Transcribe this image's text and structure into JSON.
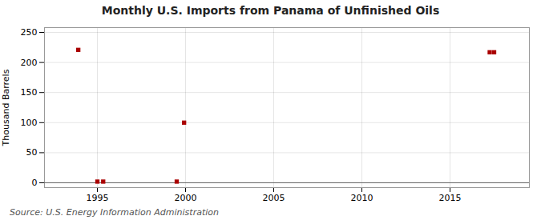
{
  "chart_data": {
    "type": "scatter",
    "title": "Monthly U.S. Imports from Panama of Unfinished Oils",
    "ylabel": "Thousand Barrels",
    "source": "Source: U.S. Energy Information Administration",
    "x": [
      1993.917,
      1995.0,
      1995.33,
      1999.5,
      1999.917,
      2017.25,
      2017.5
    ],
    "values": [
      221,
      2,
      2,
      2,
      100,
      217,
      217
    ],
    "color": "#aa0000",
    "marker": "square",
    "xlim": [
      1992.0,
      2019.5
    ],
    "xticks": [
      1995,
      2000,
      2005,
      2010,
      2015
    ],
    "ylim": [
      -8,
      258
    ],
    "yticks": [
      0,
      50,
      100,
      150,
      200,
      250
    ],
    "grid": true
  }
}
